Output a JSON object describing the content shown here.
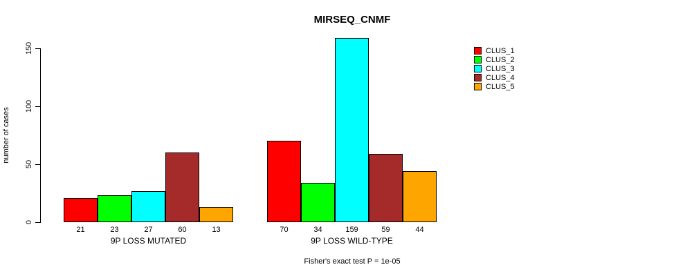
{
  "chart_data": {
    "type": "bar",
    "title": "MIRSEQ_CNMF",
    "ylabel": "number of cases",
    "xlabel": "",
    "yticks": [
      0,
      50,
      100,
      150
    ],
    "ylim": [
      0,
      160
    ],
    "grid": false,
    "legend_position": "right",
    "series_names": [
      "CLUS_1",
      "CLUS_2",
      "CLUS_3",
      "CLUS_4",
      "CLUS_5"
    ],
    "series_colors": [
      "#FF0000",
      "#00FF00",
      "#00FFFF",
      "#A52A2A",
      "#FFA500"
    ],
    "groups": [
      {
        "label": "9P LOSS MUTATED",
        "values": [
          21,
          23,
          27,
          60,
          13
        ]
      },
      {
        "label": "9P LOSS WILD-TYPE",
        "values": [
          70,
          34,
          159,
          59,
          44
        ]
      }
    ],
    "value_labels_shown": true,
    "annotation": "Fisher's exact test P = 1e-05"
  },
  "colors": {
    "background": "#FFFFFF",
    "axis": "#000000",
    "text": "#000000"
  }
}
